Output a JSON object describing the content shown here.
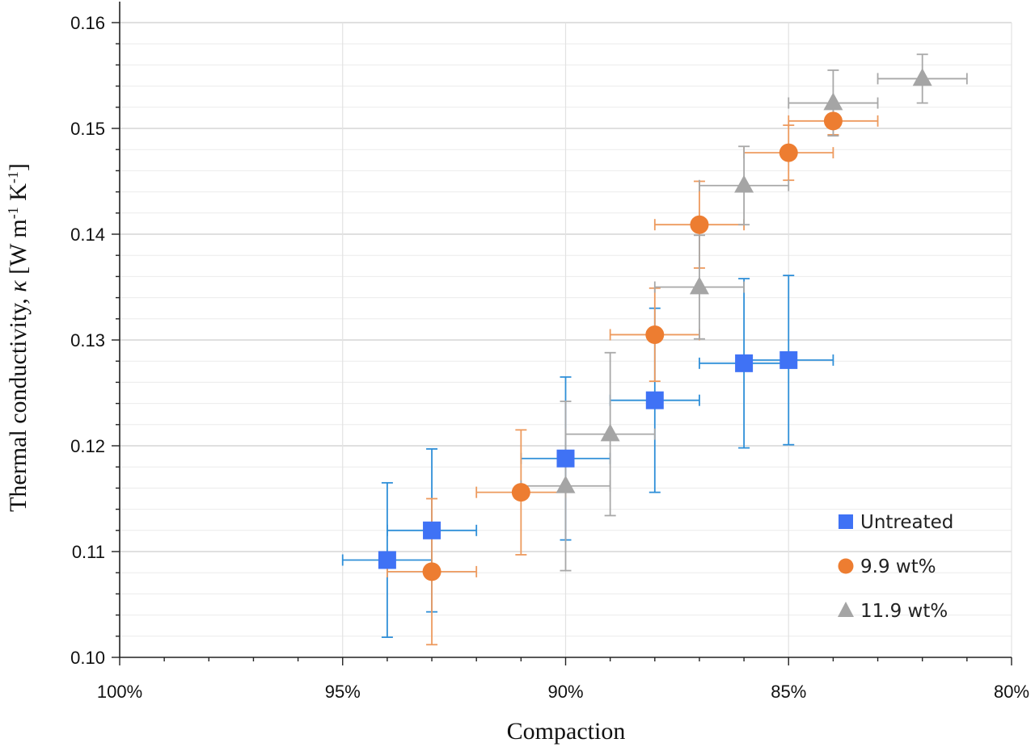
{
  "chart_data": {
    "type": "scatter",
    "xlabel": "Compaction",
    "ylabel_parts": [
      "Thermal conductivity, ",
      "κ",
      " [W m",
      "-1",
      " K",
      "-1",
      "]"
    ],
    "xlim": [
      1.0,
      0.8
    ],
    "ylim": [
      0.1,
      0.16
    ],
    "x_ticks": [
      1.0,
      0.95,
      0.9,
      0.85,
      0.8
    ],
    "x_tick_labels": [
      "100%",
      "95%",
      "90%",
      "85%",
      "80%"
    ],
    "y_ticks": [
      0.1,
      0.11,
      0.12,
      0.13,
      0.14,
      0.15,
      0.16
    ],
    "y_tick_labels": [
      "0.10",
      "0.11",
      "0.12",
      "0.13",
      "0.14",
      "0.15",
      "0.16"
    ],
    "grid": true,
    "legend_position": "bottom-right",
    "series": [
      {
        "name": "Untreated",
        "marker": "square",
        "color": "#3f72f5",
        "error_color": "#2f8fd8",
        "points": [
          {
            "x": 0.94,
            "y": 0.1092,
            "xerr": 0.01,
            "yerr": 0.0073
          },
          {
            "x": 0.93,
            "y": 0.112,
            "xerr": 0.01,
            "yerr": 0.0077
          },
          {
            "x": 0.9,
            "y": 0.1188,
            "xerr": 0.01,
            "yerr": 0.0077
          },
          {
            "x": 0.88,
            "y": 0.1243,
            "xerr": 0.01,
            "yerr": 0.0087
          },
          {
            "x": 0.86,
            "y": 0.1278,
            "xerr": 0.01,
            "yerr": 0.008
          },
          {
            "x": 0.85,
            "y": 0.1281,
            "xerr": 0.01,
            "yerr": 0.008
          }
        ]
      },
      {
        "name": "9.9 wt%",
        "marker": "circle",
        "color": "#ed7d31",
        "error_color": "#ed9a5e",
        "points": [
          {
            "x": 0.93,
            "y": 0.1081,
            "xerr": 0.01,
            "yerr": 0.0069
          },
          {
            "x": 0.91,
            "y": 0.1156,
            "xerr": 0.01,
            "yerr": 0.0059
          },
          {
            "x": 0.88,
            "y": 0.1305,
            "xerr": 0.01,
            "yerr": 0.0044
          },
          {
            "x": 0.87,
            "y": 0.1409,
            "xerr": 0.01,
            "yerr": 0.0041
          },
          {
            "x": 0.85,
            "y": 0.1477,
            "xerr": 0.01,
            "yerr": 0.0026
          },
          {
            "x": 0.84,
            "y": 0.1507,
            "xerr": 0.01,
            "yerr": 0.0013
          }
        ]
      },
      {
        "name": "11.9 wt%",
        "marker": "triangle",
        "color": "#a5a5a5",
        "error_color": "#a8a8a8",
        "points": [
          {
            "x": 0.9,
            "y": 0.1162,
            "xerr": 0.01,
            "yerr": 0.008
          },
          {
            "x": 0.89,
            "y": 0.1211,
            "xerr": 0.01,
            "yerr": 0.0077
          },
          {
            "x": 0.87,
            "y": 0.135,
            "xerr": 0.01,
            "yerr": 0.0049
          },
          {
            "x": 0.86,
            "y": 0.1446,
            "xerr": 0.01,
            "yerr": 0.0037
          },
          {
            "x": 0.84,
            "y": 0.1524,
            "xerr": 0.01,
            "yerr": 0.0031
          },
          {
            "x": 0.82,
            "y": 0.1547,
            "xerr": 0.01,
            "yerr": 0.0023
          }
        ]
      }
    ]
  }
}
